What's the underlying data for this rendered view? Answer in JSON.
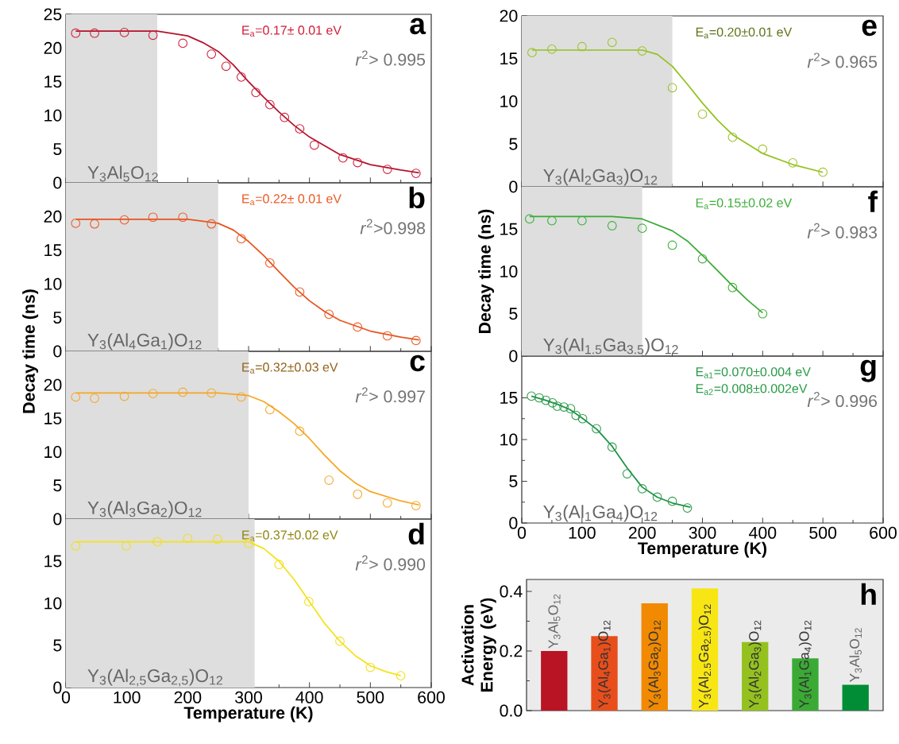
{
  "chart_data": [
    {
      "type": "scatter",
      "xlim": [
        0,
        600
      ],
      "ylim": [
        0,
        25
      ],
      "xticks": [
        0,
        100,
        200,
        300,
        400,
        500,
        600
      ],
      "yticks": [
        0,
        5,
        10,
        15,
        20,
        25
      ],
      "tick_labels": "y",
      "bands": [
        {
          "axis": "x",
          "from": 0,
          "to": 150,
          "color": "#dedede"
        }
      ],
      "annotations": [
        "a",
        "*r*$^{2}$> 0.995",
        "Y$_{3}$Al$_{5}$O$_{12}$",
        "E$_{a}$=0.17± 0.01 eV"
      ],
      "series": [
        {
          "type": "scatter",
          "marker": "circle",
          "color": "#d11f3a",
          "x": [
            16,
            47,
            96,
            143,
            192,
            239,
            263,
            288,
            312,
            335,
            359,
            384,
            408,
            455,
            479,
            528,
            575
          ],
          "values": [
            22.2,
            22.2,
            22.3,
            21.9,
            20.7,
            19.1,
            17.3,
            15.7,
            13.4,
            11.6,
            9.7,
            8.0,
            5.6,
            3.7,
            3.0,
            2.0,
            1.4
          ]
        },
        {
          "type": "line",
          "color": "#b5122b",
          "x": [
            16,
            150,
            200,
            225,
            250,
            275,
            300,
            325,
            350,
            375,
            400,
            450,
            500,
            550,
            580
          ],
          "values": [
            22.5,
            22.5,
            21.8,
            20.8,
            19.5,
            17.5,
            15.0,
            12.7,
            10.5,
            8.5,
            6.8,
            4.2,
            2.7,
            1.9,
            1.5
          ]
        }
      ]
    },
    {
      "type": "scatter",
      "xlim": [
        0,
        600
      ],
      "ylim": [
        0,
        25
      ],
      "xticks": [
        0,
        100,
        200,
        300,
        400,
        500,
        600
      ],
      "yticks": [
        0,
        5,
        10,
        15,
        20
      ],
      "tick_labels": "y",
      "bands": [
        {
          "axis": "x",
          "from": 0,
          "to": 250,
          "color": "#dedede"
        }
      ],
      "annotations": [
        "b",
        "*r*$^{2}$>0.998",
        "Y$_{3}$(Al$_{4}$Ga$_{1}$)O$_{12}$",
        "E$_{a}$=0.22± 0.01 eV"
      ],
      "series": [
        {
          "type": "scatter",
          "marker": "circle",
          "color": "#ea5a24",
          "x": [
            16,
            47,
            96,
            143,
            192,
            239,
            288,
            335,
            384,
            432,
            479,
            528,
            575
          ],
          "values": [
            19.0,
            18.9,
            19.5,
            19.9,
            19.9,
            18.9,
            16.7,
            13.1,
            8.8,
            5.5,
            3.6,
            2.3,
            1.6
          ]
        },
        {
          "type": "line",
          "color": "#e8531e",
          "x": [
            16,
            200,
            250,
            275,
            300,
            325,
            350,
            375,
            400,
            425,
            450,
            500,
            550,
            580
          ],
          "values": [
            19.6,
            19.6,
            19.0,
            18.0,
            16.3,
            14.2,
            11.8,
            9.5,
            7.5,
            5.9,
            4.6,
            3.0,
            2.1,
            1.7
          ]
        }
      ]
    },
    {
      "type": "scatter",
      "xlim": [
        0,
        600
      ],
      "ylim": [
        0,
        25
      ],
      "xticks": [
        0,
        100,
        200,
        300,
        400,
        500,
        600
      ],
      "yticks": [
        0,
        5,
        10,
        15,
        20
      ],
      "tick_labels": "y",
      "ylabel": "Decay time (ns)",
      "bands": [
        {
          "axis": "x",
          "from": 0,
          "to": 300,
          "color": "#dedede"
        }
      ],
      "annotations": [
        "c",
        "*r*$^{2}$> 0.997",
        "Y$_{3}$(Al$_{3}$Ga$_{2}$)O$_{12}$",
        "E$_{a}$=0.32±0.03 eV"
      ],
      "series": [
        {
          "type": "scatter",
          "marker": "circle",
          "color": "#f5a82e",
          "x": [
            16,
            47,
            96,
            143,
            192,
            239,
            288,
            335,
            384,
            432,
            479,
            528,
            575
          ],
          "values": [
            18.2,
            18.0,
            18.3,
            18.7,
            18.9,
            18.8,
            18.2,
            16.3,
            13.1,
            5.8,
            3.7,
            2.4,
            2.0
          ]
        },
        {
          "type": "line",
          "color": "#f6a623",
          "x": [
            16,
            250,
            300,
            325,
            350,
            375,
            400,
            425,
            450,
            475,
            500,
            550,
            580
          ],
          "values": [
            18.8,
            18.8,
            18.4,
            17.5,
            16.0,
            14.2,
            12.0,
            9.5,
            7.2,
            5.4,
            4.1,
            2.7,
            2.1
          ]
        }
      ]
    },
    {
      "type": "scatter",
      "xlim": [
        0,
        600
      ],
      "ylim": [
        0,
        20
      ],
      "xticks": [
        0,
        100,
        200,
        300,
        400,
        500,
        600
      ],
      "yticks": [
        0,
        5,
        10,
        15
      ],
      "xlabel": "Temperature (K)",
      "bands": [
        {
          "axis": "x",
          "from": 0,
          "to": 310,
          "color": "#dedede"
        }
      ],
      "annotations": [
        "d",
        "*r*$^{2}$> 0.990",
        "Y$_{3}$(Al$_{2,5}$Ga$_{2,5}$)O$_{12}$",
        "E$_{a}$=0.37±0.02 eV"
      ],
      "series": [
        {
          "type": "scatter",
          "marker": "circle",
          "color": "#f3df1c",
          "x": [
            16,
            99,
            150,
            200,
            249,
            300,
            350,
            399,
            450,
            500,
            550
          ],
          "values": [
            16.8,
            16.8,
            17.3,
            17.7,
            17.6,
            17.1,
            14.6,
            10.2,
            5.5,
            2.4,
            1.4
          ]
        },
        {
          "type": "line",
          "color": "#f4e21b",
          "x": [
            16,
            300,
            325,
            350,
            375,
            400,
            425,
            450,
            475,
            500,
            525,
            550
          ],
          "values": [
            17.3,
            17.3,
            16.5,
            15.0,
            12.8,
            10.2,
            7.6,
            5.5,
            3.8,
            2.6,
            1.9,
            1.4
          ]
        }
      ]
    },
    {
      "type": "scatter",
      "xlim": [
        0,
        600
      ],
      "ylim": [
        0,
        20
      ],
      "xticks": [
        0,
        100,
        200,
        300,
        400,
        500,
        600
      ],
      "yticks": [
        0,
        5,
        10,
        15,
        20
      ],
      "tick_labels": "y",
      "bands": [
        {
          "axis": "x",
          "from": 0,
          "to": 250,
          "color": "#dedede"
        }
      ],
      "annotations": [
        "e",
        "*r*$^{2}$> 0.965",
        "Y$_{3}$(Al$_{2}$Ga$_{3}$)O$_{12}$",
        "E$_{a}$=0.20±0.01 eV"
      ],
      "series": [
        {
          "type": "scatter",
          "marker": "circle",
          "color": "#9cc32b",
          "x": [
            17,
            50,
            100,
            150,
            200,
            250,
            300,
            350,
            400,
            450,
            500
          ],
          "values": [
            15.7,
            16.1,
            16.4,
            16.9,
            15.9,
            11.6,
            8.5,
            5.8,
            4.4,
            2.8,
            1.7
          ]
        },
        {
          "type": "line",
          "color": "#94c11f",
          "x": [
            17,
            200,
            225,
            250,
            275,
            300,
            325,
            350,
            400,
            450,
            500
          ],
          "values": [
            16.0,
            16.0,
            15.5,
            14.1,
            12.0,
            9.8,
            7.8,
            6.1,
            3.9,
            2.6,
            1.7
          ]
        }
      ]
    },
    {
      "type": "scatter",
      "xlim": [
        0,
        600
      ],
      "ylim": [
        0,
        20
      ],
      "xticks": [
        0,
        100,
        200,
        300,
        400,
        500,
        600
      ],
      "yticks": [
        0,
        5,
        10,
        15
      ],
      "tick_labels": "y",
      "ylabel": "Decay time (ns)",
      "bands": [
        {
          "axis": "x",
          "from": 0,
          "to": 200,
          "color": "#dedede"
        }
      ],
      "annotations": [
        "f",
        "*r*$^{2}$> 0.983",
        "Y$_{3}$(Al$_{1.5}$Ga$_{3.5}$)O$_{12}$",
        "E$_{a}$=0.15±0.02 eV"
      ],
      "series": [
        {
          "type": "scatter",
          "marker": "circle",
          "color": "#3fae3a",
          "x": [
            13,
            50,
            100,
            150,
            200,
            250,
            300,
            350,
            400
          ],
          "values": [
            16.2,
            16.0,
            16.0,
            15.4,
            15.1,
            13.1,
            11.5,
            8.1,
            5.0
          ]
        },
        {
          "type": "line",
          "color": "#3aaa35",
          "x": [
            13,
            150,
            200,
            250,
            275,
            300,
            325,
            350,
            375,
            400
          ],
          "values": [
            16.5,
            16.5,
            16.2,
            14.8,
            13.6,
            11.9,
            10.1,
            8.3,
            6.6,
            5.1
          ]
        }
      ]
    },
    {
      "type": "scatter",
      "xlim": [
        0,
        600
      ],
      "ylim": [
        0,
        20
      ],
      "xticks": [
        0,
        100,
        200,
        300,
        400,
        500,
        600
      ],
      "yticks": [
        0,
        5,
        10,
        15
      ],
      "xlabel": "Temperature (K)",
      "annotations": [
        "g",
        "*r*$^{2}$> 0.996",
        "Y$_{3}$(Al$_{1}$Ga$_{4}$)O$_{12}$",
        "E$_{a1}$=0.070±0.004 eV",
        "E$_{a2}$=0.008±0.002eV"
      ],
      "series": [
        {
          "type": "scatter",
          "marker": "circle",
          "color": "#2a9b48",
          "x": [
            16,
            29,
            40,
            51,
            59,
            70,
            81,
            90,
            101,
            124,
            150,
            175,
            200,
            225,
            250,
            275
          ],
          "values": [
            15.2,
            15.0,
            14.7,
            14.4,
            14.0,
            13.9,
            13.7,
            12.9,
            12.5,
            11.3,
            9.1,
            5.9,
            4.1,
            3.1,
            2.6,
            1.8
          ]
        },
        {
          "type": "line",
          "color": "#1b9245",
          "x": [
            16,
            40,
            60,
            80,
            100,
            125,
            150,
            175,
            200,
            225,
            250,
            280
          ],
          "values": [
            15.2,
            14.7,
            14.2,
            13.6,
            12.6,
            11.2,
            9.2,
            6.6,
            4.3,
            3.1,
            2.4,
            1.9
          ]
        }
      ]
    },
    {
      "type": "bar",
      "ylim": [
        0,
        0.44
      ],
      "yticks": [
        {
          "value": 0,
          "label": "0.0"
        },
        0.2,
        0.4
      ],
      "ylabel": "Activation Energy (eV)",
      "annotations": [
        "h"
      ],
      "categories": [
        "Y$_{3}$Al$_{5}$O$_{12}$",
        "Y$_{3}$(Al$_{4}$Ga$_{1}$)O$_{12}$",
        "Y$_{3}$(Al$_{3}$Ga$_{2}$)O$_{12}$",
        "Y$_{3}$(Al$_{2.5}$Ga$_{2.5}$)O$_{12}$",
        "Y$_{3}$(Al$_{2}$Ga$_{3}$)O$_{12}$",
        "Y$_{3}$(Al$_{1}$Ga$_{4}$)O$_{12}$",
        "Y$_{3}$Al$_{5}$O$_{12}$"
      ],
      "values": [
        0.2,
        0.25,
        0.36,
        0.41,
        0.23,
        0.175,
        0.087
      ],
      "colors": [
        "#b81424",
        "#e84e1b",
        "#f18a00",
        "#f7e614",
        "#95c11f",
        "#3aaa35",
        "#008d36"
      ]
    }
  ]
}
